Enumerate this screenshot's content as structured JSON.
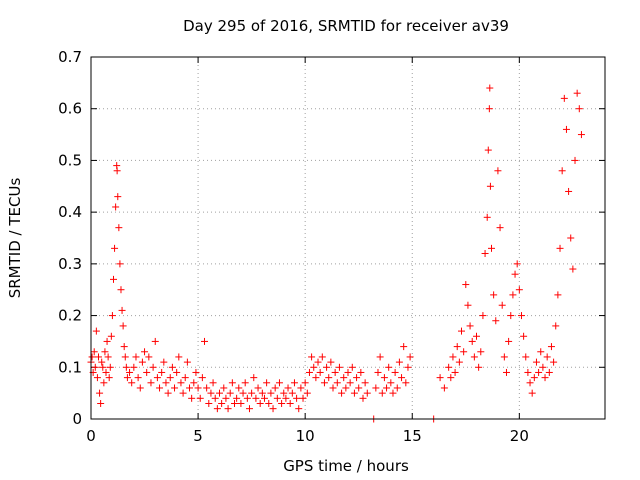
{
  "chart_data": {
    "type": "scatter",
    "title": "Day 295 of 2016, SRMTID for receiver av39",
    "xlabel": "GPS time / hours",
    "ylabel": "SRMTID / TECUs",
    "xlim": [
      0,
      24
    ],
    "ylim": [
      0,
      0.7
    ],
    "xticks": [
      0,
      5,
      10,
      15,
      20
    ],
    "xtick_labels": [
      "0",
      "5",
      "10",
      "15",
      "20"
    ],
    "yticks": [
      0,
      0.1,
      0.2,
      0.3,
      0.4,
      0.5,
      0.6,
      0.7
    ],
    "ytick_labels": [
      "0",
      "0.1",
      "0.2",
      "0.3",
      "0.4",
      "0.5",
      "0.6",
      "0.7"
    ],
    "grid": true,
    "marker": "+",
    "color": "#ff0000",
    "series": [
      {
        "name": "SRMTID",
        "points": [
          [
            0.0,
            0.11
          ],
          [
            0.05,
            0.12
          ],
          [
            0.1,
            0.09
          ],
          [
            0.15,
            0.13
          ],
          [
            0.2,
            0.1
          ],
          [
            0.25,
            0.17
          ],
          [
            0.3,
            0.08
          ],
          [
            0.35,
            0.12
          ],
          [
            0.4,
            0.05
          ],
          [
            0.45,
            0.03
          ],
          [
            0.5,
            0.11
          ],
          [
            0.55,
            0.1
          ],
          [
            0.6,
            0.07
          ],
          [
            0.65,
            0.13
          ],
          [
            0.7,
            0.09
          ],
          [
            0.75,
            0.15
          ],
          [
            0.8,
            0.12
          ],
          [
            0.85,
            0.08
          ],
          [
            0.9,
            0.1
          ],
          [
            0.95,
            0.16
          ],
          [
            1.0,
            0.2
          ],
          [
            1.05,
            0.27
          ],
          [
            1.1,
            0.33
          ],
          [
            1.15,
            0.41
          ],
          [
            1.2,
            0.49
          ],
          [
            1.22,
            0.48
          ],
          [
            1.25,
            0.43
          ],
          [
            1.3,
            0.37
          ],
          [
            1.35,
            0.3
          ],
          [
            1.4,
            0.25
          ],
          [
            1.45,
            0.21
          ],
          [
            1.5,
            0.18
          ],
          [
            1.55,
            0.14
          ],
          [
            1.6,
            0.12
          ],
          [
            1.65,
            0.1
          ],
          [
            1.7,
            0.08
          ],
          [
            1.8,
            0.09
          ],
          [
            1.9,
            0.07
          ],
          [
            2.0,
            0.1
          ],
          [
            2.1,
            0.12
          ],
          [
            2.2,
            0.08
          ],
          [
            2.3,
            0.06
          ],
          [
            2.4,
            0.11
          ],
          [
            2.5,
            0.13
          ],
          [
            2.6,
            0.09
          ],
          [
            2.7,
            0.12
          ],
          [
            2.8,
            0.07
          ],
          [
            2.9,
            0.1
          ],
          [
            3.0,
            0.15
          ],
          [
            3.1,
            0.08
          ],
          [
            3.2,
            0.06
          ],
          [
            3.3,
            0.09
          ],
          [
            3.4,
            0.11
          ],
          [
            3.5,
            0.07
          ],
          [
            3.6,
            0.05
          ],
          [
            3.7,
            0.08
          ],
          [
            3.8,
            0.1
          ],
          [
            3.9,
            0.06
          ],
          [
            4.0,
            0.09
          ],
          [
            4.1,
            0.12
          ],
          [
            4.2,
            0.07
          ],
          [
            4.3,
            0.05
          ],
          [
            4.4,
            0.08
          ],
          [
            4.5,
            0.11
          ],
          [
            4.6,
            0.06
          ],
          [
            4.7,
            0.04
          ],
          [
            4.8,
            0.07
          ],
          [
            4.9,
            0.09
          ],
          [
            5.0,
            0.06
          ],
          [
            5.1,
            0.04
          ],
          [
            5.2,
            0.08
          ],
          [
            5.3,
            0.15
          ],
          [
            5.4,
            0.06
          ],
          [
            5.5,
            0.03
          ],
          [
            5.6,
            0.05
          ],
          [
            5.7,
            0.07
          ],
          [
            5.8,
            0.04
          ],
          [
            5.9,
            0.02
          ],
          [
            6.0,
            0.05
          ],
          [
            6.1,
            0.03
          ],
          [
            6.2,
            0.06
          ],
          [
            6.3,
            0.04
          ],
          [
            6.4,
            0.02
          ],
          [
            6.5,
            0.05
          ],
          [
            6.6,
            0.07
          ],
          [
            6.7,
            0.03
          ],
          [
            6.8,
            0.04
          ],
          [
            6.9,
            0.06
          ],
          [
            7.0,
            0.03
          ],
          [
            7.1,
            0.05
          ],
          [
            7.2,
            0.07
          ],
          [
            7.3,
            0.04
          ],
          [
            7.4,
            0.02
          ],
          [
            7.5,
            0.05
          ],
          [
            7.6,
            0.08
          ],
          [
            7.7,
            0.04
          ],
          [
            7.8,
            0.06
          ],
          [
            7.9,
            0.03
          ],
          [
            8.0,
            0.05
          ],
          [
            8.1,
            0.04
          ],
          [
            8.2,
            0.07
          ],
          [
            8.3,
            0.03
          ],
          [
            8.4,
            0.05
          ],
          [
            8.5,
            0.02
          ],
          [
            8.6,
            0.06
          ],
          [
            8.7,
            0.04
          ],
          [
            8.8,
            0.07
          ],
          [
            8.9,
            0.03
          ],
          [
            9.0,
            0.05
          ],
          [
            9.1,
            0.04
          ],
          [
            9.2,
            0.06
          ],
          [
            9.3,
            0.03
          ],
          [
            9.4,
            0.05
          ],
          [
            9.5,
            0.07
          ],
          [
            9.6,
            0.04
          ],
          [
            9.7,
            0.02
          ],
          [
            9.8,
            0.06
          ],
          [
            9.9,
            0.04
          ],
          [
            10.0,
            0.07
          ],
          [
            10.1,
            0.05
          ],
          [
            10.2,
            0.09
          ],
          [
            10.3,
            0.12
          ],
          [
            10.4,
            0.1
          ],
          [
            10.5,
            0.08
          ],
          [
            10.6,
            0.11
          ],
          [
            10.7,
            0.09
          ],
          [
            10.8,
            0.12
          ],
          [
            10.9,
            0.07
          ],
          [
            11.0,
            0.1
          ],
          [
            11.1,
            0.08
          ],
          [
            11.2,
            0.11
          ],
          [
            11.3,
            0.06
          ],
          [
            11.4,
            0.09
          ],
          [
            11.5,
            0.07
          ],
          [
            11.6,
            0.1
          ],
          [
            11.7,
            0.05
          ],
          [
            11.8,
            0.08
          ],
          [
            11.9,
            0.06
          ],
          [
            12.0,
            0.09
          ],
          [
            12.1,
            0.07
          ],
          [
            12.2,
            0.1
          ],
          [
            12.3,
            0.05
          ],
          [
            12.4,
            0.08
          ],
          [
            12.5,
            0.06
          ],
          [
            12.6,
            0.09
          ],
          [
            12.7,
            0.04
          ],
          [
            12.8,
            0.07
          ],
          [
            12.9,
            0.05
          ],
          [
            13.2,
            0.0
          ],
          [
            13.3,
            0.06
          ],
          [
            13.4,
            0.09
          ],
          [
            13.5,
            0.12
          ],
          [
            13.6,
            0.05
          ],
          [
            13.7,
            0.08
          ],
          [
            13.8,
            0.06
          ],
          [
            13.9,
            0.1
          ],
          [
            14.0,
            0.07
          ],
          [
            14.1,
            0.05
          ],
          [
            14.2,
            0.09
          ],
          [
            14.3,
            0.06
          ],
          [
            14.4,
            0.11
          ],
          [
            14.5,
            0.08
          ],
          [
            14.6,
            0.14
          ],
          [
            14.7,
            0.07
          ],
          [
            14.8,
            0.1
          ],
          [
            14.9,
            0.12
          ],
          [
            16.0,
            0.0
          ],
          [
            16.3,
            0.08
          ],
          [
            16.5,
            0.06
          ],
          [
            16.7,
            0.1
          ],
          [
            16.8,
            0.08
          ],
          [
            16.9,
            0.12
          ],
          [
            17.0,
            0.09
          ],
          [
            17.1,
            0.14
          ],
          [
            17.2,
            0.11
          ],
          [
            17.3,
            0.17
          ],
          [
            17.4,
            0.13
          ],
          [
            17.5,
            0.26
          ],
          [
            17.6,
            0.22
          ],
          [
            17.7,
            0.18
          ],
          [
            17.8,
            0.15
          ],
          [
            17.9,
            0.12
          ],
          [
            18.0,
            0.16
          ],
          [
            18.1,
            0.1
          ],
          [
            18.2,
            0.13
          ],
          [
            18.3,
            0.2
          ],
          [
            18.4,
            0.32
          ],
          [
            18.5,
            0.39
          ],
          [
            18.55,
            0.52
          ],
          [
            18.6,
            0.6
          ],
          [
            18.62,
            0.64
          ],
          [
            18.65,
            0.45
          ],
          [
            18.7,
            0.33
          ],
          [
            18.8,
            0.24
          ],
          [
            18.9,
            0.19
          ],
          [
            19.0,
            0.48
          ],
          [
            19.1,
            0.37
          ],
          [
            19.2,
            0.22
          ],
          [
            19.3,
            0.12
          ],
          [
            19.4,
            0.09
          ],
          [
            19.5,
            0.15
          ],
          [
            19.6,
            0.2
          ],
          [
            19.7,
            0.24
          ],
          [
            19.8,
            0.28
          ],
          [
            19.9,
            0.3
          ],
          [
            20.0,
            0.25
          ],
          [
            20.1,
            0.2
          ],
          [
            20.2,
            0.16
          ],
          [
            20.3,
            0.12
          ],
          [
            20.4,
            0.09
          ],
          [
            20.5,
            0.07
          ],
          [
            20.6,
            0.05
          ],
          [
            20.7,
            0.08
          ],
          [
            20.8,
            0.11
          ],
          [
            20.9,
            0.09
          ],
          [
            21.0,
            0.13
          ],
          [
            21.1,
            0.1
          ],
          [
            21.2,
            0.08
          ],
          [
            21.3,
            0.12
          ],
          [
            21.4,
            0.09
          ],
          [
            21.5,
            0.14
          ],
          [
            21.6,
            0.11
          ],
          [
            21.7,
            0.18
          ],
          [
            21.8,
            0.24
          ],
          [
            21.9,
            0.33
          ],
          [
            22.0,
            0.48
          ],
          [
            22.1,
            0.62
          ],
          [
            22.2,
            0.56
          ],
          [
            22.3,
            0.44
          ],
          [
            22.4,
            0.35
          ],
          [
            22.5,
            0.29
          ],
          [
            22.6,
            0.5
          ],
          [
            22.7,
            0.63
          ],
          [
            22.8,
            0.6
          ],
          [
            22.9,
            0.55
          ]
        ]
      }
    ]
  }
}
